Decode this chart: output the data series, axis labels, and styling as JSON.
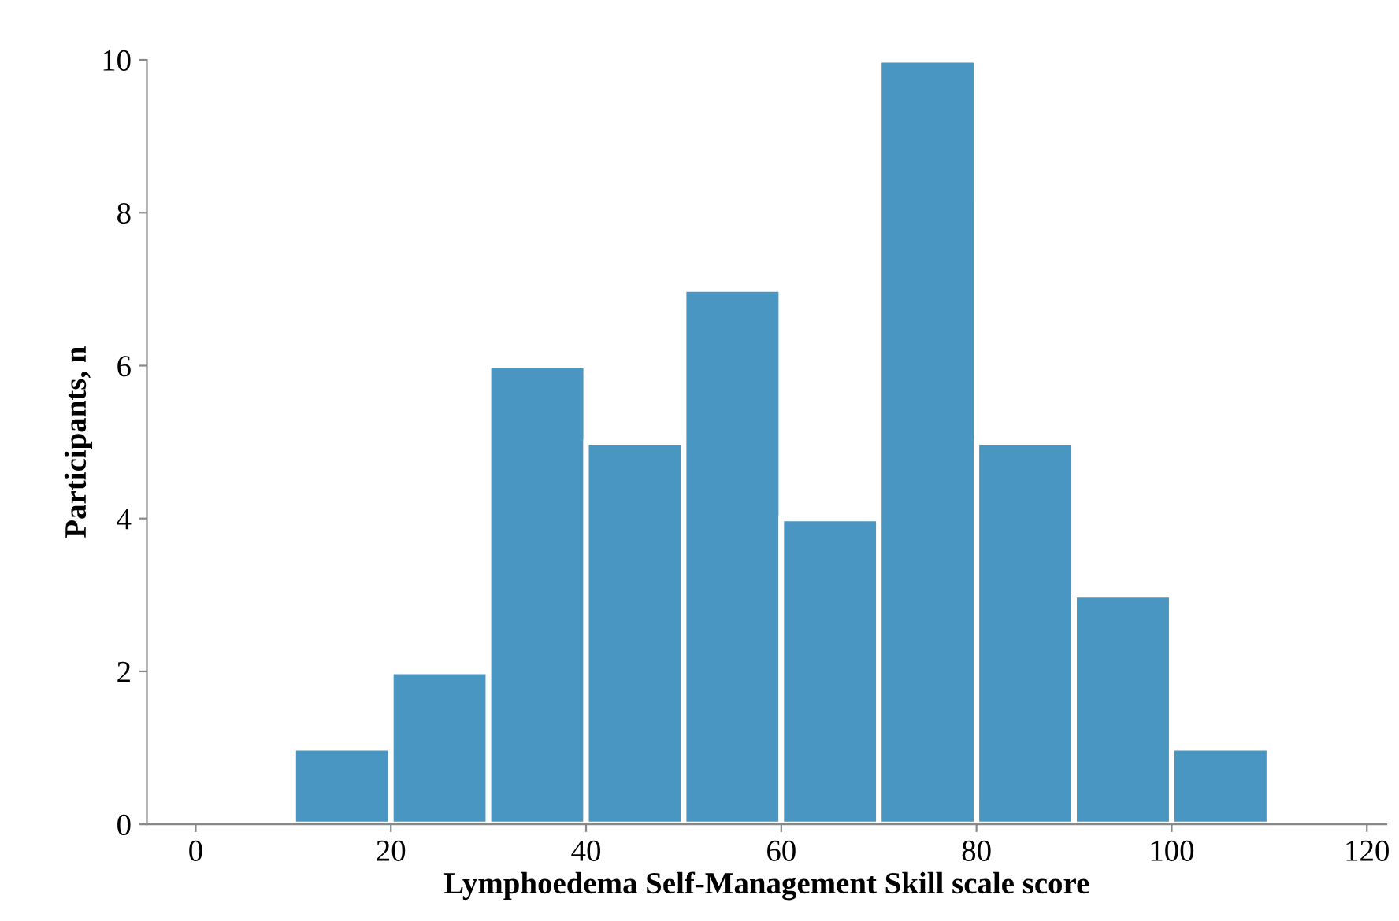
{
  "chart_data": {
    "type": "histogram",
    "xlabel": "Lymphoedema Self-Management Skill scale score",
    "ylabel": "Participants, n",
    "bins": [
      10,
      20,
      30,
      40,
      50,
      60,
      70,
      80,
      90,
      100,
      110
    ],
    "values": [
      1,
      2,
      6,
      5,
      7,
      4,
      10,
      5,
      3,
      1
    ],
    "color": "#4a96c2",
    "xlim": [
      -5,
      122
    ],
    "xticks": [
      0,
      20,
      40,
      60,
      80,
      100,
      120
    ],
    "ylim": [
      0,
      10
    ],
    "yticks": [
      0,
      2,
      4,
      6,
      8,
      10
    ],
    "grid": false,
    "legend": false
  }
}
